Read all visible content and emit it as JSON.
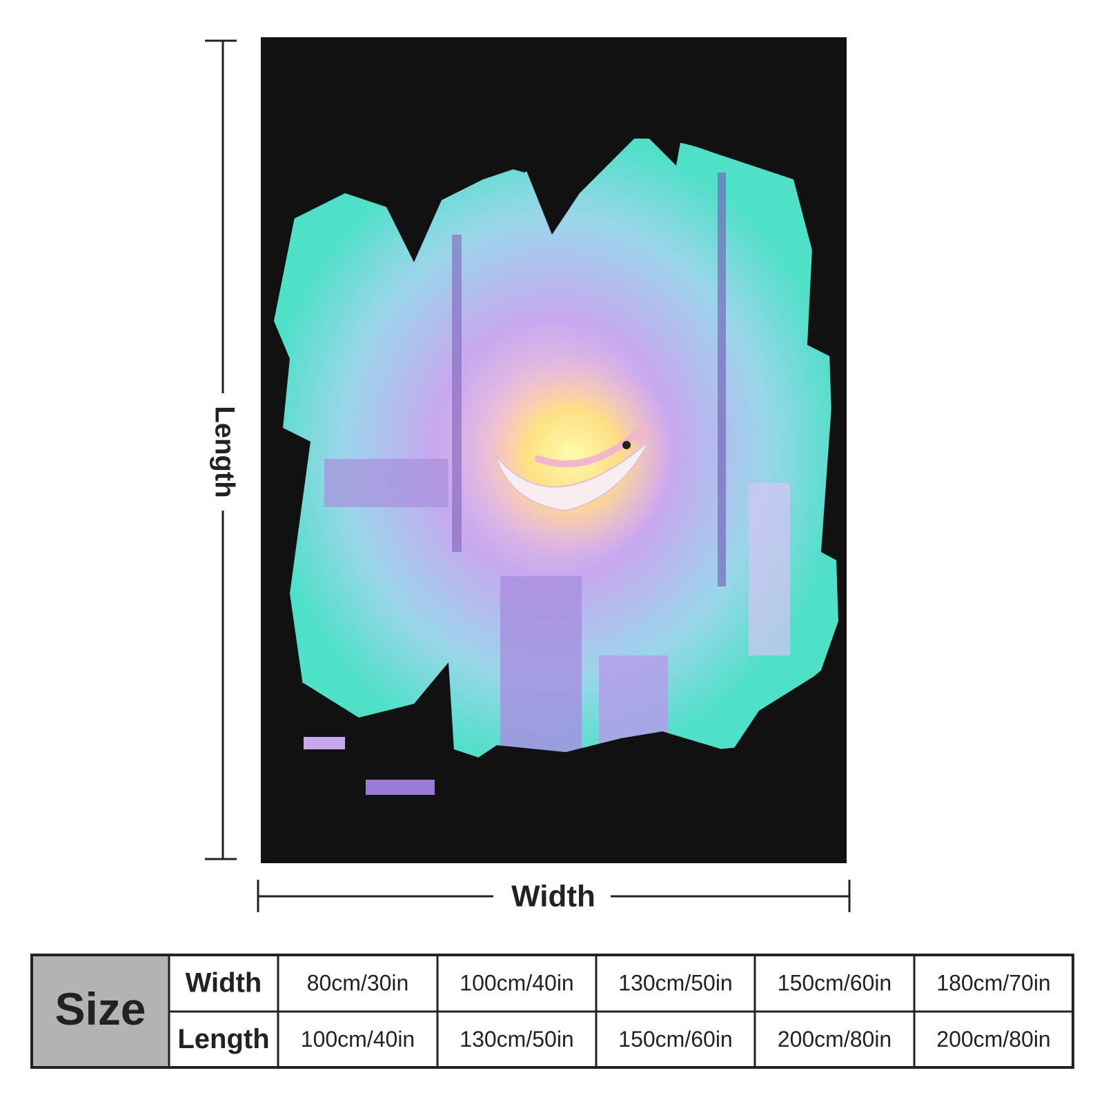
{
  "dimensions": {
    "length_label": "Length",
    "width_label": "Width"
  },
  "table": {
    "header": "Size",
    "rows": [
      [
        "Width",
        "80cm/30in",
        "100cm/40in",
        "130cm/50in",
        "150cm/60in",
        "180cm/70in"
      ],
      [
        "Length",
        "100cm/40in",
        "130cm/50in",
        "150cm/60in",
        "200cm/80in",
        "200cm/80in"
      ]
    ]
  }
}
